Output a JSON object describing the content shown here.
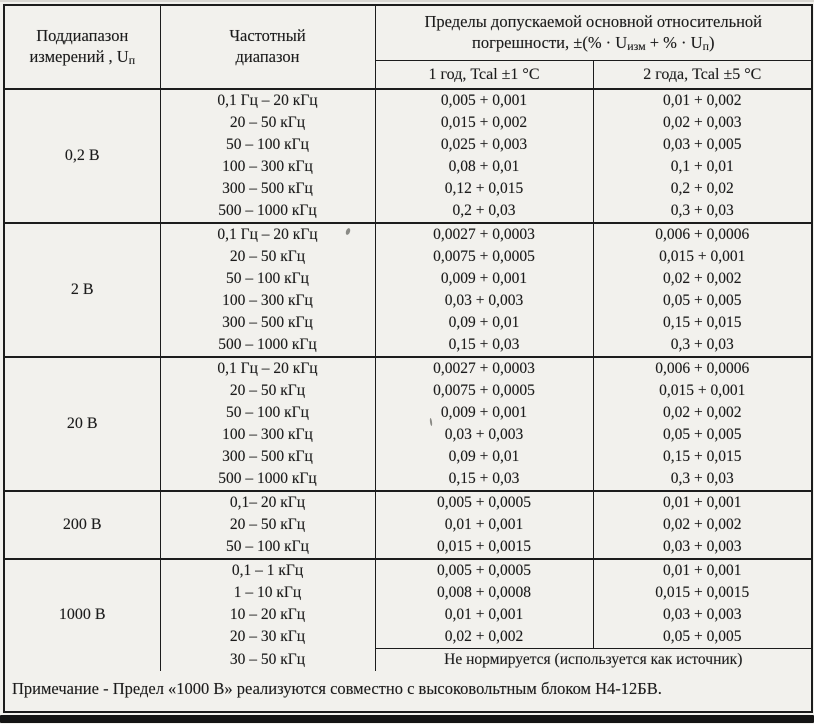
{
  "theme": {
    "paper": "#f2f1ed",
    "ink": "#1c1c1c",
    "line": "#1c1c1c",
    "scan_bar": "#141414"
  },
  "table": {
    "header": {
      "subrange_line1": "Поддиапазон",
      "subrange_line2": "измерений , U",
      "subrange_sub": "п",
      "frequency_line1": "Частотный",
      "frequency_line2": "диапазон",
      "limits_line1": "Пределы допускаемой основной относительной",
      "limits_f1": "погрешности, ±(% · U",
      "limits_sub1": "изм",
      "limits_f2": " + % · U",
      "limits_sub2": "п",
      "limits_f3": ")",
      "year1": "1 год, Tcal ±1 °C",
      "year2": "2 года, Tcal ±5 °C"
    },
    "groups": [
      {
        "range": "0,2 В",
        "rows": [
          [
            "0,1 Гц – 20 кГц",
            "0,005 + 0,001",
            "0,01 + 0,002"
          ],
          [
            "20 – 50 кГц",
            "0,015 + 0,002",
            "0,02 + 0,003"
          ],
          [
            "50 – 100 кГц",
            "0,025 + 0,003",
            "0,03 + 0,005"
          ],
          [
            "100 – 300 кГц",
            "0,08 + 0,01",
            "0,1 + 0,01"
          ],
          [
            "300 – 500 кГц",
            "0,12 + 0,015",
            "0,2 + 0,02"
          ],
          [
            "500 – 1000 кГц",
            "0,2 + 0,03",
            "0,3 + 0,03"
          ]
        ]
      },
      {
        "range": "2 В",
        "rows": [
          [
            "0,1 Гц – 20 кГц",
            "0,0027 + 0,0003",
            "0,006 + 0,0006"
          ],
          [
            "20 – 50 кГц",
            "0,0075 + 0,0005",
            "0,015 + 0,001"
          ],
          [
            "50 – 100 кГц",
            "0,009 + 0,001",
            "0,02 + 0,002"
          ],
          [
            "100 – 300 кГц",
            "0,03 + 0,003",
            "0,05 + 0,005"
          ],
          [
            "300 – 500 кГц",
            "0,09 + 0,01",
            "0,15 + 0,015"
          ],
          [
            "500 – 1000 кГц",
            "0,15 + 0,03",
            "0,3 + 0,03"
          ]
        ]
      },
      {
        "range": "20 В",
        "rows": [
          [
            "0,1 Гц – 20 кГц",
            "0,0027 + 0,0003",
            "0,006 + 0,0006"
          ],
          [
            "20 – 50 кГц",
            "0,0075 + 0,0005",
            "0,015 + 0,001"
          ],
          [
            "50 – 100 кГц",
            "0,009 + 0,001",
            "0,02 + 0,002"
          ],
          [
            "100 – 300 кГц",
            "0,03 + 0,003",
            "0,05 + 0,005"
          ],
          [
            "300 – 500 кГц",
            "0,09 + 0,01",
            "0,15 + 0,015"
          ],
          [
            "500 – 1000 кГц",
            "0,15 + 0,03",
            "0,3 + 0,03"
          ]
        ]
      },
      {
        "range": "200 В",
        "rows": [
          [
            "0,1– 20 кГц",
            "0,005 + 0,0005",
            "0,01 + 0,001"
          ],
          [
            "20 – 50 кГц",
            "0,01 + 0,001",
            "0,02 + 0,002"
          ],
          [
            "50 – 100 кГц",
            "0,015 + 0,0015",
            "0,03 + 0,003"
          ]
        ]
      },
      {
        "range": "1000 В",
        "rows": [
          [
            "0,1 – 1 кГц",
            "0,005 + 0,0005",
            "0,01 + 0,001"
          ],
          [
            "1 – 10 кГц",
            "0,008 + 0,0008",
            "0,015 + 0,0015"
          ],
          [
            "10 – 20 кГц",
            "0,01 + 0,001",
            "0,03 + 0,003"
          ],
          [
            "20 – 30 кГц",
            "0,02 + 0,002",
            "0,05 + 0,005"
          ]
        ],
        "no_norm": {
          "freq": "30 – 50 кГц",
          "text": "Не нормируется (используется как источник)"
        }
      }
    ],
    "note": "Примечание - Предел «1000 В» реализуются совместно с высоковольтным блоком Н4-12БВ."
  }
}
